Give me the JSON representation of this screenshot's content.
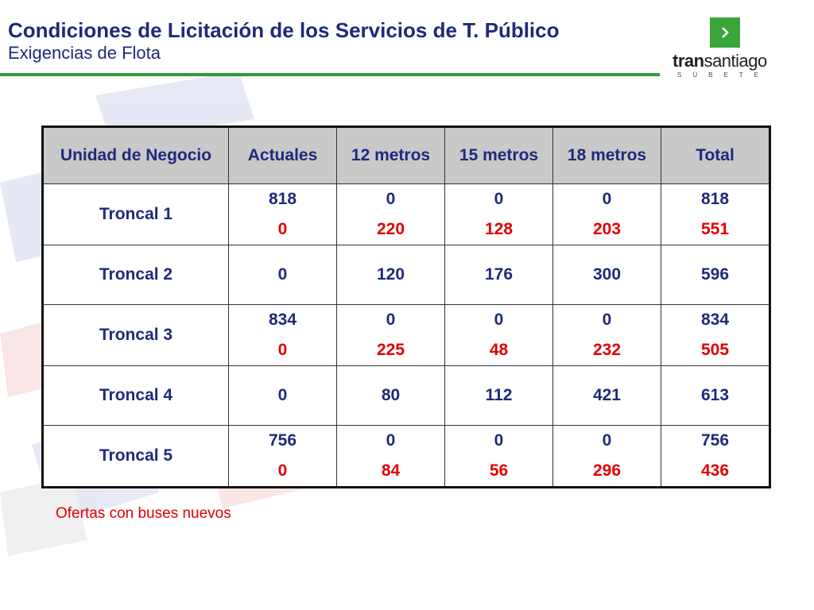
{
  "header": {
    "title": "Condiciones de Licitación de los Servicios de T. Público",
    "subtitle": "Exigencias de Flota",
    "accent_color": "#2e9a3a"
  },
  "logo": {
    "icon": "chevron-right-icon",
    "word_bold": "tran",
    "word_regular": "santiago",
    "tagline": "SÚBETE",
    "color": "#3aa53a"
  },
  "table": {
    "headers": [
      "Unidad de Negocio",
      "Actuales",
      "12 metros",
      "15 metros",
      "18 metros",
      "Total"
    ],
    "rows": [
      {
        "label": "Troncal 1",
        "top": [
          "818",
          "0",
          "0",
          "0",
          "818"
        ],
        "bottom": [
          "0",
          "220",
          "128",
          "203",
          "551"
        ]
      },
      {
        "label": "Troncal 2",
        "top": [
          "0",
          "120",
          "176",
          "300",
          "596"
        ],
        "bottom": []
      },
      {
        "label": "Troncal 3",
        "top": [
          "834",
          "0",
          "0",
          "0",
          "834"
        ],
        "bottom": [
          "0",
          "225",
          "48",
          "232",
          "505"
        ]
      },
      {
        "label": "Troncal 4",
        "top": [
          "0",
          "80",
          "112",
          "421",
          "613"
        ],
        "bottom": []
      },
      {
        "label": "Troncal 5",
        "top": [
          "756",
          "0",
          "0",
          "0",
          "756"
        ],
        "bottom": [
          "0",
          "84",
          "56",
          "296",
          "436"
        ]
      }
    ],
    "primary_color": "#1f2a7a",
    "offer_color": "#e00000",
    "header_bg": "#c9c9c9"
  },
  "footnote": "Ofertas con buses nuevos"
}
